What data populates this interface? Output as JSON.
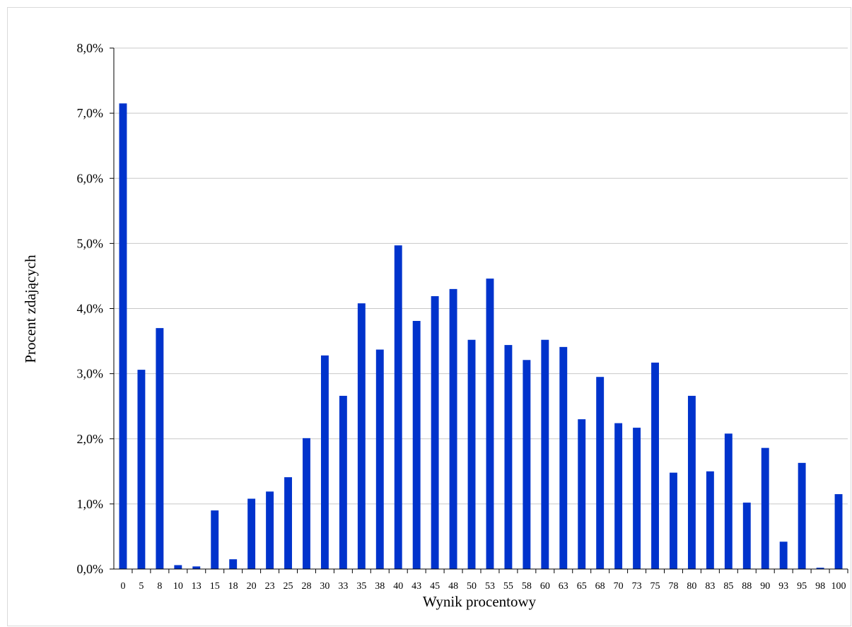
{
  "chart_data": {
    "type": "bar",
    "xlabel": "Wynik procentowy",
    "ylabel": "Procent zdających",
    "ylim": [
      0,
      8
    ],
    "y_ticks": [
      "0,0%",
      "1,0%",
      "2,0%",
      "3,0%",
      "4,0%",
      "5,0%",
      "6,0%",
      "7,0%",
      "8,0%"
    ],
    "grid": true,
    "bar_color": "#0033cc",
    "categories": [
      "0",
      "5",
      "8",
      "10",
      "13",
      "15",
      "18",
      "20",
      "23",
      "25",
      "28",
      "30",
      "33",
      "35",
      "38",
      "40",
      "43",
      "45",
      "48",
      "50",
      "53",
      "55",
      "58",
      "60",
      "63",
      "65",
      "68",
      "70",
      "73",
      "75",
      "78",
      "80",
      "83",
      "85",
      "88",
      "90",
      "93",
      "95",
      "98",
      "100"
    ],
    "values": [
      7.15,
      3.06,
      3.7,
      0.06,
      0.04,
      0.9,
      0.15,
      1.08,
      1.19,
      1.41,
      2.01,
      3.28,
      2.66,
      4.08,
      3.37,
      4.97,
      3.81,
      4.19,
      4.3,
      3.52,
      4.46,
      3.44,
      3.21,
      3.52,
      3.41,
      2.3,
      2.95,
      2.24,
      2.17,
      3.17,
      1.48,
      2.66,
      1.5,
      2.08,
      1.02,
      1.86,
      0.42,
      1.63,
      0.02,
      1.15
    ]
  }
}
